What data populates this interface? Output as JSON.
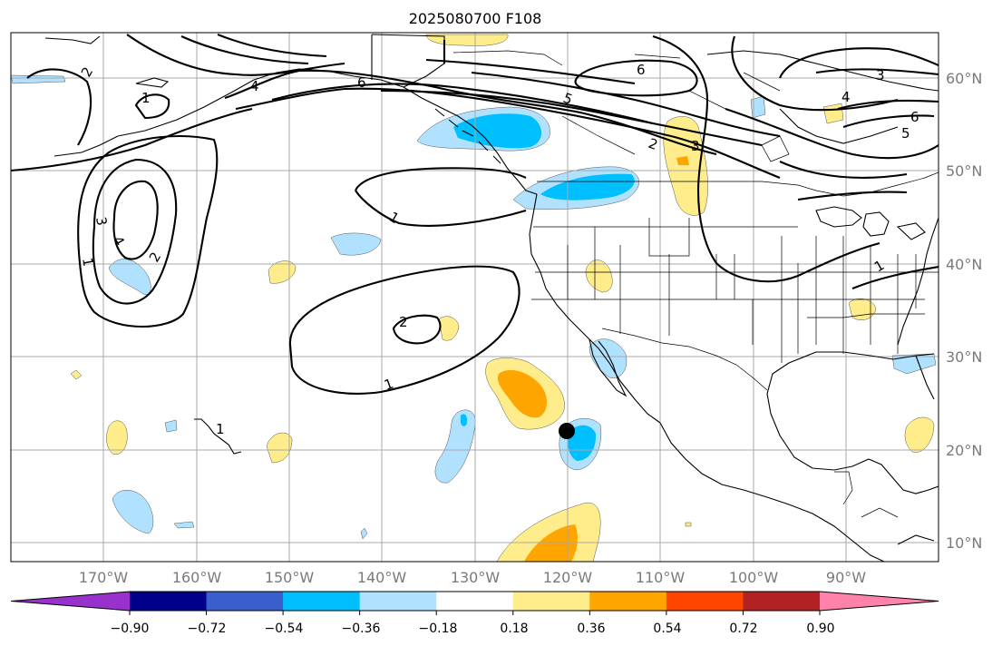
{
  "title": "2025080700 F108",
  "map": {
    "lon_ticks": [
      "170°W",
      "160°W",
      "150°W",
      "140°W",
      "130°W",
      "120°W",
      "110°W",
      "100°W",
      "90°W"
    ],
    "lat_ticks": [
      "60°N",
      "50°N",
      "40°N",
      "30°N",
      "20°N",
      "10°N"
    ],
    "contour_labels": [
      "1",
      "1",
      "1",
      "1",
      "1",
      "1",
      "2",
      "2",
      "2",
      "2",
      "3",
      "3",
      "3",
      "4",
      "4",
      "4",
      "5",
      "5",
      "6",
      "6",
      "6"
    ],
    "marker": {
      "lon": -120,
      "lat": 22,
      "label": "storm-center-marker"
    }
  },
  "colorbar": {
    "colors": [
      "#9932cc",
      "#00008b",
      "#3a5fcd",
      "#00bfff",
      "#b0e2ff",
      "#ffffff",
      "#ffec8b",
      "#ffa500",
      "#ff4500",
      "#b22222",
      "#ff82ab"
    ],
    "tick_labels": [
      "−0.90",
      "−0.72",
      "−0.54",
      "−0.36",
      "−0.18",
      "0.18",
      "0.36",
      "0.54",
      "0.72",
      "0.90"
    ]
  }
}
